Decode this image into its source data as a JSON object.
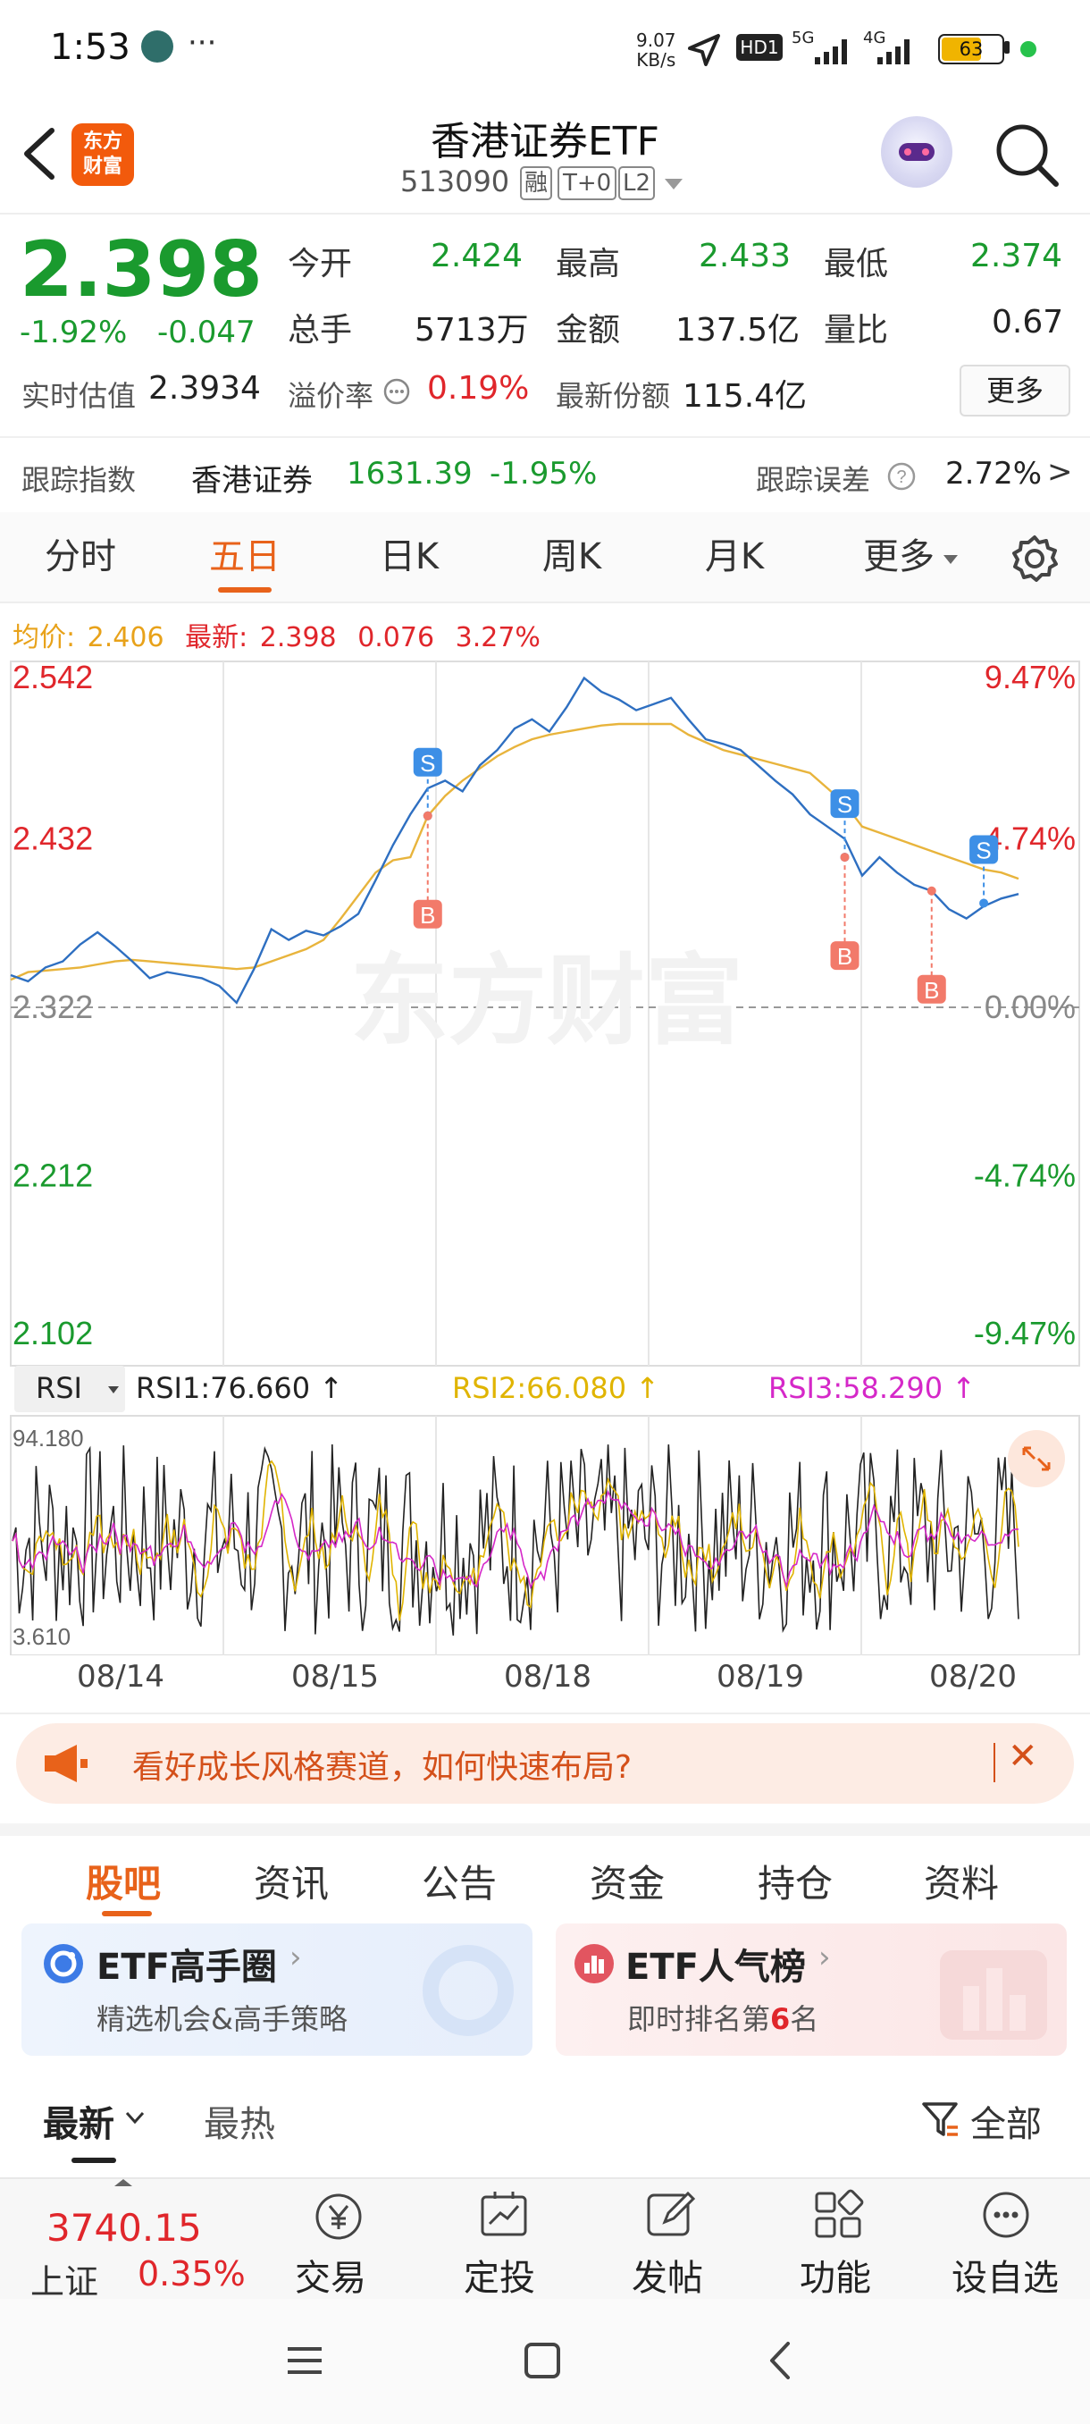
{
  "status_bar": {
    "time": "1:53",
    "ellipsis": "···",
    "net_speed_top": "9.07",
    "net_speed_bottom": "KB/s",
    "hd": "HD1",
    "sig1": "5G",
    "sig2": "4G",
    "battery": "63"
  },
  "header": {
    "logo_line1": "东方",
    "logo_line2": "财富",
    "title": "香港证券ETF",
    "code": "513090",
    "tag1": "融",
    "tag2": "T+0",
    "tag3": "L2"
  },
  "quote": {
    "price": "2.398",
    "change_pct": "-1.92%",
    "change": "-0.047",
    "stats": [
      {
        "label": "今开",
        "value": "2.424",
        "color": "green"
      },
      {
        "label": "最高",
        "value": "2.433",
        "color": "green"
      },
      {
        "label": "最低",
        "value": "2.374",
        "color": "green"
      },
      {
        "label": "总手",
        "value": "5713万",
        "color": "normal"
      },
      {
        "label": "金额",
        "value": "137.5亿",
        "color": "normal"
      },
      {
        "label": "量比",
        "value": "0.67",
        "color": "normal"
      }
    ],
    "iopv_label": "实时估值",
    "iopv_value": "2.3934",
    "premium_label": "溢价率",
    "premium_value": "0.19%",
    "shares_label": "最新份额",
    "shares_value": "115.4亿",
    "more_button": "更多"
  },
  "tracking": {
    "label": "跟踪指数",
    "index_name": "香港证券",
    "index_value": "1631.39",
    "index_change": "-1.95%",
    "error_label": "跟踪误差",
    "error_value": "2.72%",
    "arrow": ">"
  },
  "chart_tabs": [
    "分时",
    "五日",
    "日K",
    "周K",
    "月K",
    "更多"
  ],
  "chart_info": {
    "avg_label": "均价:",
    "avg_value": "2.406",
    "latest_label": "最新:",
    "latest_value": "2.398",
    "chg": "0.076",
    "chg_pct": "3.27%"
  },
  "chart_data": {
    "type": "line",
    "y_left_ticks": [
      "2.542",
      "2.432",
      "2.322",
      "2.212",
      "2.102"
    ],
    "y_right_ticks": [
      "9.47%",
      "4.74%",
      "0.00%",
      "-4.74%",
      "-9.47%"
    ],
    "ylim": [
      2.102,
      2.542
    ],
    "x_labels": [
      "08/14",
      "08/15",
      "08/18",
      "08/19",
      "08/20"
    ],
    "watermark": "东方财富",
    "series": [
      {
        "name": "",
        "color": "#2e6fc1",
        "values": [
          2.343,
          2.339,
          2.348,
          2.352,
          2.363,
          2.371,
          2.362,
          2.352,
          2.341,
          2.345,
          2.343,
          2.341,
          2.336,
          2.325,
          2.347,
          2.373,
          2.366,
          2.372,
          2.369,
          2.375,
          2.383,
          2.405,
          2.428,
          2.448,
          2.465,
          2.47,
          2.463,
          2.48,
          2.49,
          2.504,
          2.51,
          2.502,
          2.518,
          2.537,
          2.528,
          2.523,
          2.516,
          2.52,
          2.524,
          2.51,
          2.497,
          2.494,
          2.49,
          2.48,
          2.47,
          2.461,
          2.448,
          2.44,
          2.432,
          2.408,
          2.42,
          2.41,
          2.402,
          2.398,
          2.386,
          2.38,
          2.388,
          2.393,
          2.396
        ]
      },
      {
        "name": "",
        "color": "#e8b43c",
        "values": [
          2.34,
          2.345,
          2.346,
          2.347,
          2.348,
          2.35,
          2.352,
          2.353,
          2.352,
          2.351,
          2.35,
          2.349,
          2.348,
          2.347,
          2.348,
          2.352,
          2.356,
          2.36,
          2.366,
          2.38,
          2.395,
          2.41,
          2.418,
          2.42,
          2.447,
          2.46,
          2.47,
          2.478,
          2.486,
          2.492,
          2.497,
          2.5,
          2.502,
          2.504,
          2.506,
          2.507,
          2.507,
          2.507,
          2.507,
          2.5,
          2.495,
          2.49,
          2.487,
          2.484,
          2.481,
          2.478,
          2.475,
          2.465,
          2.455,
          2.44,
          2.436,
          2.432,
          2.428,
          2.424,
          2.42,
          2.416,
          2.412,
          2.41,
          2.406
        ]
      }
    ],
    "markers": [
      {
        "type": "S",
        "x_index": 24,
        "value": 2.447
      },
      {
        "type": "B",
        "x_index": 24,
        "value": 2.447
      },
      {
        "type": "S",
        "x_index": 48,
        "value": 2.42
      },
      {
        "type": "B",
        "x_index": 48,
        "value": 2.42
      },
      {
        "type": "B",
        "x_index": 53,
        "value": 2.398
      },
      {
        "type": "S",
        "x_index": 56,
        "value": 2.39
      }
    ]
  },
  "rsi": {
    "selector": "RSI",
    "rsi1": "RSI1:76.660",
    "rsi2": "RSI2:66.080",
    "rsi3": "RSI3:58.290",
    "arrow": "↑",
    "top": "94.180",
    "bottom": "3.610",
    "colors": {
      "rsi1": "#222222",
      "rsi2": "#e0b400",
      "rsi3": "#d528c8"
    }
  },
  "banner": {
    "text": "看好成长风格赛道，如何快速布局?",
    "close": "✕"
  },
  "sub_tabs": [
    "股吧",
    "资讯",
    "公告",
    "资金",
    "持仓",
    "资料"
  ],
  "cards": [
    {
      "title": "ETF高手圈",
      "subtitle": "精选机会&高手策略"
    },
    {
      "title": "ETF人气榜",
      "subtitle_pre": "即时排名第",
      "rank": "6",
      "subtitle_post": "名"
    }
  ],
  "filter": {
    "latest": "最新",
    "hot": "最热",
    "all": "全部"
  },
  "bottom_nav": {
    "index_value": "3740.15",
    "index_name": "上证",
    "index_change": "0.35%",
    "items": [
      "交易",
      "定投",
      "发帖",
      "功能",
      "设自选"
    ],
    "icons": [
      "yen-icon",
      "chart-icon",
      "edit-icon",
      "grid-icon",
      "more-icon"
    ]
  }
}
